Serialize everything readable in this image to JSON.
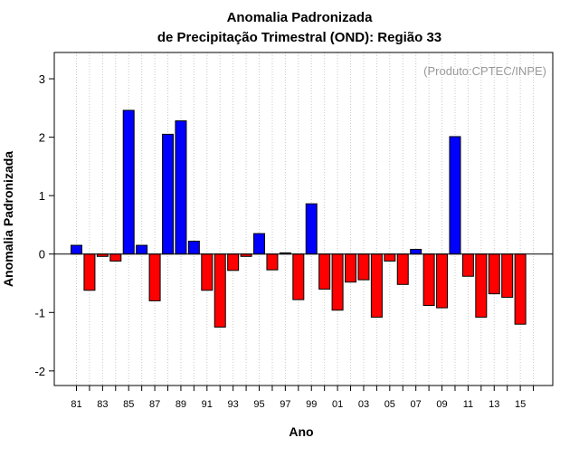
{
  "chart_data": {
    "type": "bar",
    "title_line1": "Anomalia Padronizada",
    "title_line2": "de Precipitação Trimestral (OND): Região 33",
    "watermark": "(Produto:CPTEC/INPE)",
    "xlabel": "Ano",
    "ylabel": "Anomalia Padronizada",
    "ylim": [
      -2.25,
      3.45
    ],
    "yticks": [
      -2,
      -1,
      0,
      1,
      2,
      3
    ],
    "grid": "vertical-dotted",
    "positive_color": "#0000ff",
    "negative_color": "#ff0000",
    "categories": [
      "81",
      "82",
      "83",
      "84",
      "85",
      "86",
      "87",
      "88",
      "89",
      "90",
      "91",
      "92",
      "93",
      "94",
      "95",
      "96",
      "97",
      "98",
      "99",
      "00",
      "01",
      "02",
      "03",
      "04",
      "05",
      "06",
      "07",
      "08",
      "09",
      "10",
      "11",
      "12",
      "13",
      "14",
      "15",
      "16"
    ],
    "tick_labels": [
      "81",
      "83",
      "85",
      "87",
      "89",
      "91",
      "93",
      "95",
      "97",
      "99",
      "01",
      "03",
      "05",
      "07",
      "09",
      "11",
      "13",
      "15"
    ],
    "values": [
      0.15,
      -0.62,
      -0.04,
      -0.12,
      2.46,
      0.15,
      -0.8,
      2.05,
      2.28,
      0.22,
      -0.62,
      -1.25,
      -0.28,
      -0.04,
      0.35,
      -0.27,
      0.02,
      -0.78,
      0.86,
      -0.6,
      -0.96,
      -0.48,
      -0.44,
      -1.08,
      -0.12,
      -0.52,
      0.08,
      -0.88,
      -0.92,
      2.01,
      -0.38,
      -1.08,
      -0.68,
      -0.74,
      -1.2,
      null
    ]
  }
}
